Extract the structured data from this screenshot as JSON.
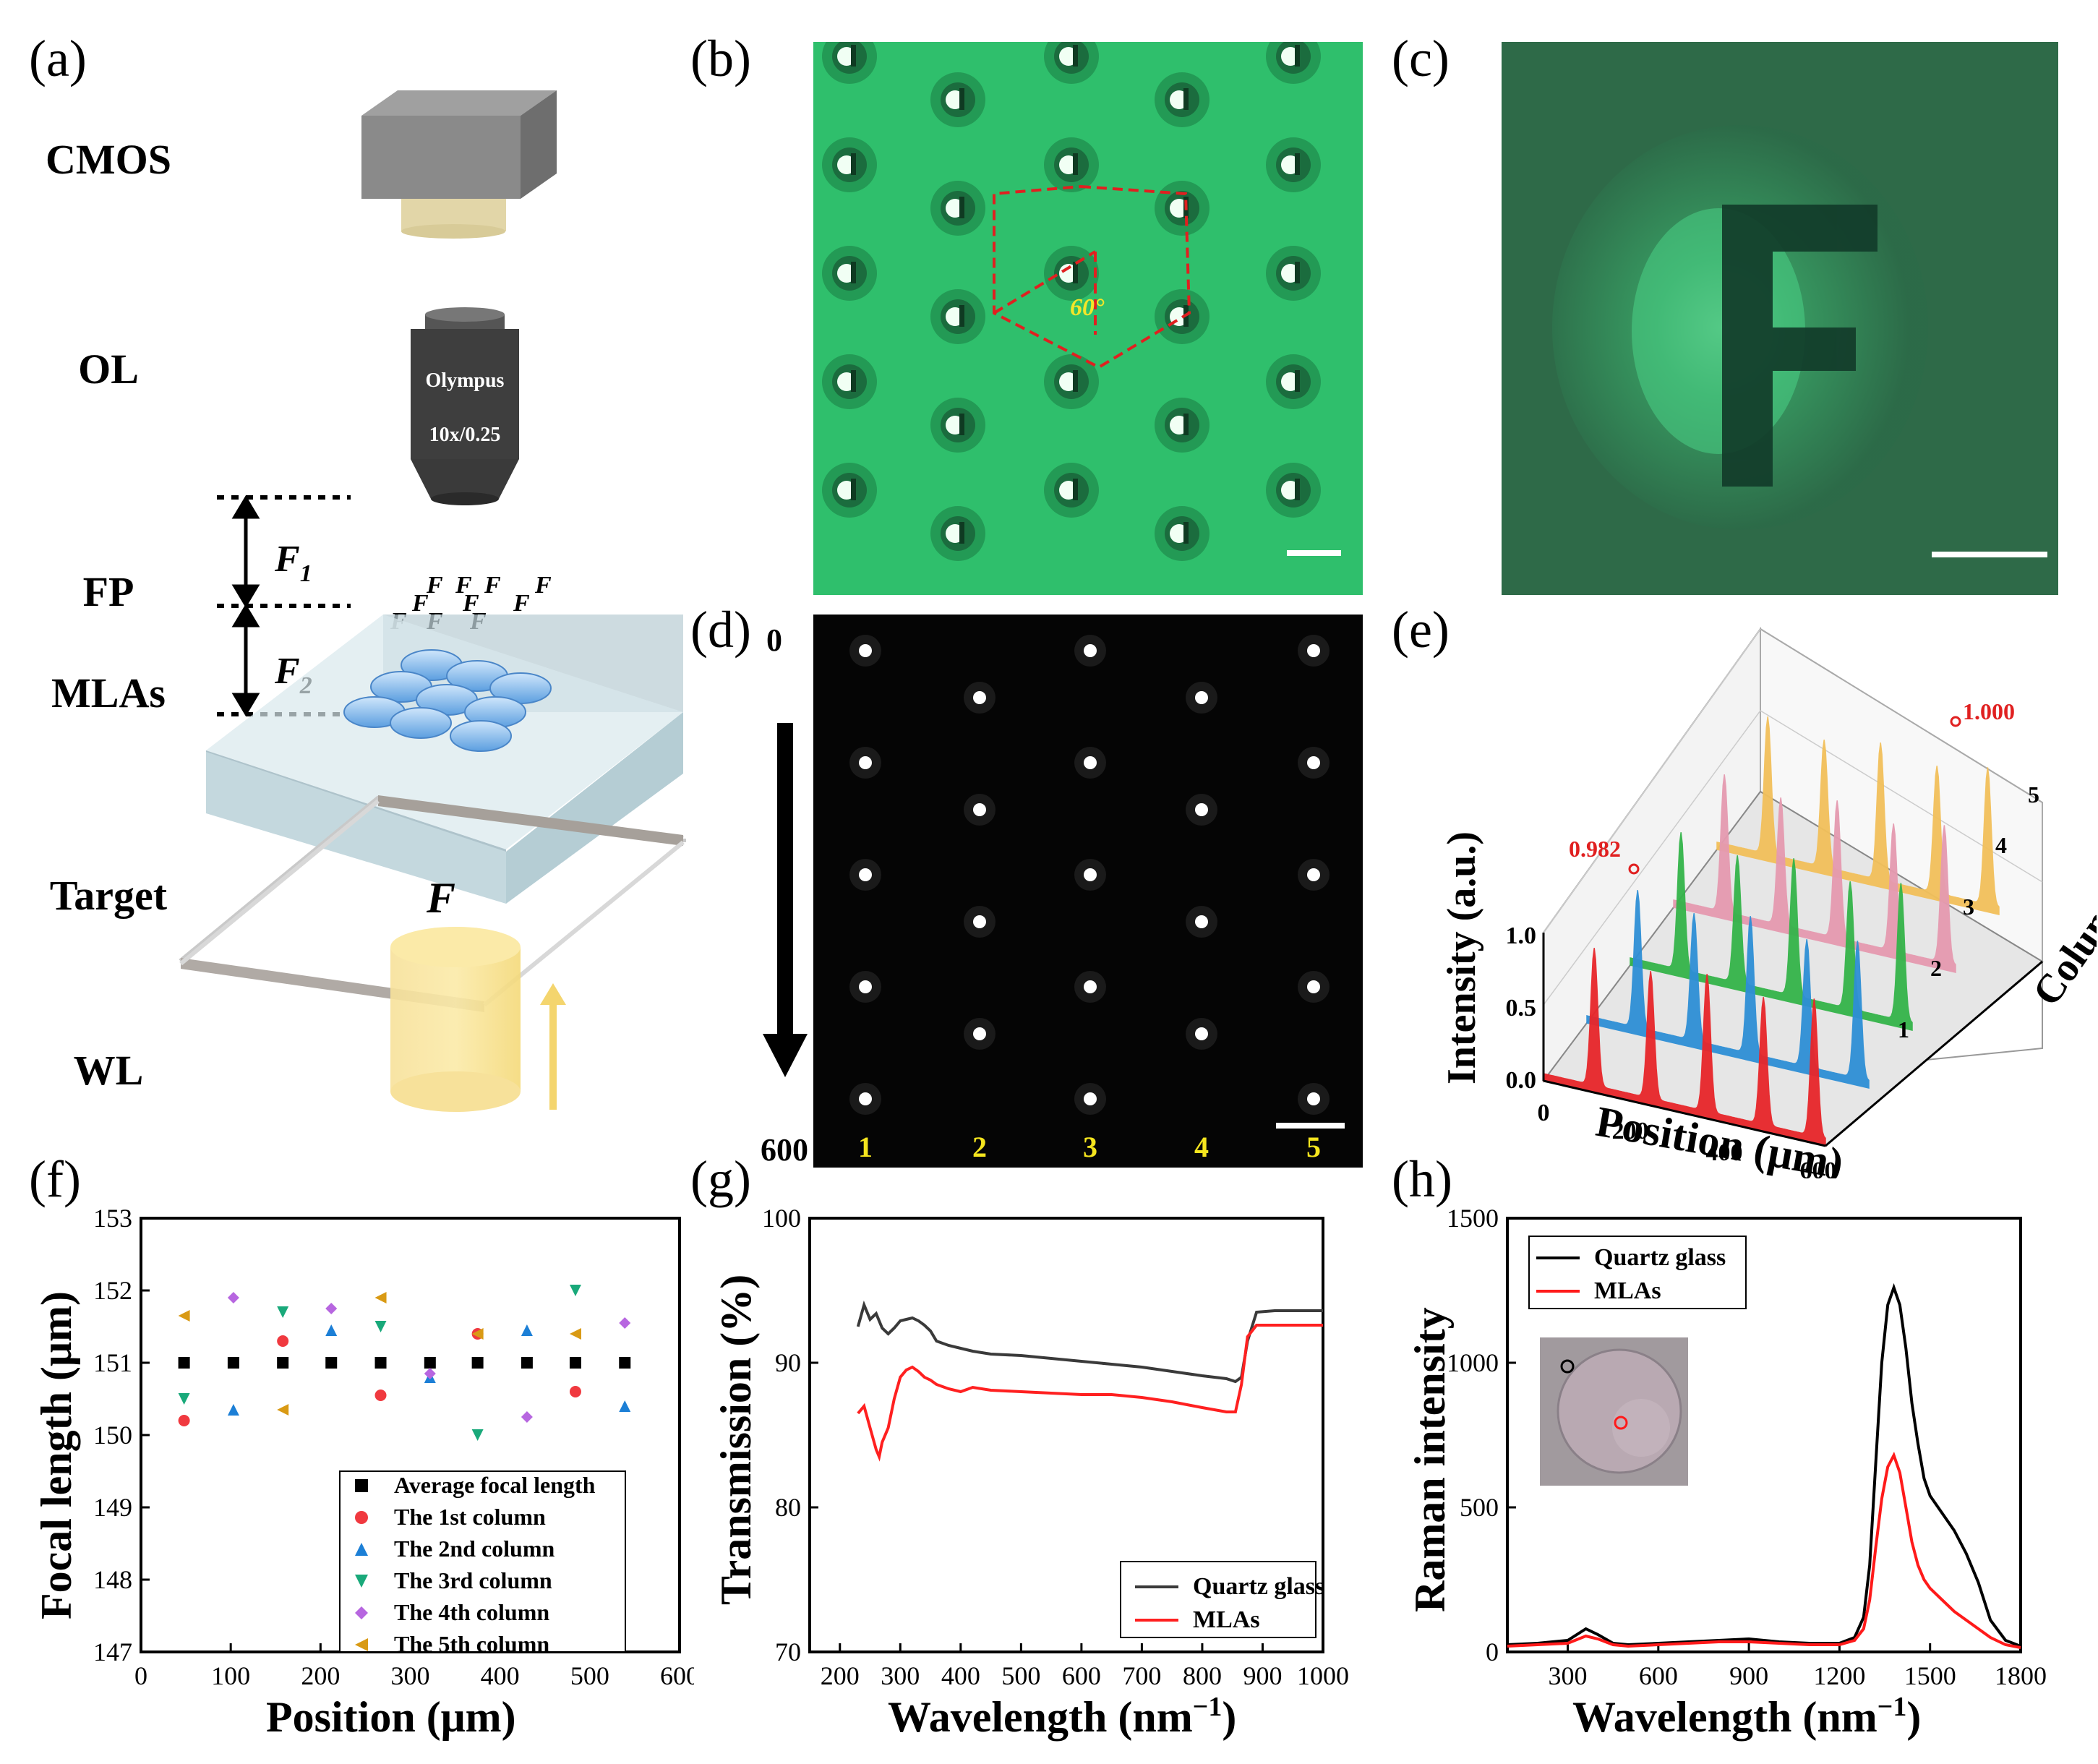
{
  "panel_labels": {
    "a": "(a)",
    "b": "(b)",
    "c": "(c)",
    "d": "(d)",
    "e": "(e)",
    "f": "(f)",
    "g": "(g)",
    "h": "(h)"
  },
  "setup": {
    "labels": [
      "CMOS",
      "OL",
      "FP",
      "MLAs",
      "Target",
      "WL"
    ],
    "objective_brand": "Olympus",
    "objective_spec": "10x/0.25",
    "f1": "F",
    "f1_sub": "1",
    "f2": "F",
    "f2_sub": "2",
    "target_glyph": "F",
    "image_glyph": "F"
  },
  "panel_b": {
    "angle_label": "60°"
  },
  "panel_d": {
    "top_label": "0",
    "bottom_label": "600",
    "columns": [
      "1",
      "2",
      "3",
      "4",
      "5"
    ]
  },
  "panel_e": {
    "ylabel": "Intensity (a.u.)",
    "xlabel": "Position (μm)",
    "zlabel": "Column",
    "y_ticks": [
      "0.0",
      "0.5",
      "1.0"
    ],
    "x_ticks": [
      "0",
      "200",
      "400",
      "600"
    ],
    "z_ticks": [
      "1",
      "2",
      "3",
      "4",
      "5"
    ],
    "annot_low": "0.982",
    "annot_high": "1.000",
    "colors": [
      "#e8262a",
      "#2e8fd6",
      "#34b44a",
      "#e59ab0",
      "#f2c05a"
    ]
  },
  "chart_data": [
    {
      "type": "scatter",
      "panel": "f",
      "xlabel": "Position  (μm)",
      "ylabel": "Focal length (μm)",
      "xlim": [
        0,
        600
      ],
      "ylim": [
        147,
        153
      ],
      "x_ticks": [
        "0",
        "100",
        "200",
        "300",
        "400",
        "500",
        "600"
      ],
      "y_ticks": [
        "147",
        "148",
        "149",
        "150",
        "151",
        "152",
        "153"
      ],
      "series": [
        {
          "name": "Average focal length",
          "color": "#000000",
          "marker": "square",
          "x": [
            48,
            103,
            158,
            212,
            267,
            322,
            375,
            430,
            484,
            539
          ],
          "y": [
            151.0,
            151.0,
            151.0,
            151.0,
            151.0,
            151.0,
            151.0,
            151.0,
            151.0,
            151.0
          ]
        },
        {
          "name": "The 1st  column",
          "color": "#f0393f",
          "marker": "circle",
          "x": [
            48,
            158,
            267,
            375,
            484
          ],
          "y": [
            150.2,
            151.3,
            150.55,
            151.4,
            150.6
          ]
        },
        {
          "name": "The 2nd column",
          "color": "#1c7fd6",
          "marker": "triangle-up",
          "x": [
            103,
            212,
            322,
            430,
            539
          ],
          "y": [
            150.35,
            151.45,
            150.8,
            151.45,
            150.4
          ]
        },
        {
          "name": "The 3rd column",
          "color": "#19a97a",
          "marker": "triangle-down",
          "x": [
            48,
            158,
            267,
            375,
            484
          ],
          "y": [
            150.5,
            151.7,
            151.5,
            150.0,
            152.0
          ]
        },
        {
          "name": "The 4th column",
          "color": "#b766e0",
          "marker": "diamond",
          "x": [
            103,
            212,
            322,
            430,
            539
          ],
          "y": [
            151.9,
            151.75,
            150.85,
            150.25,
            151.55
          ]
        },
        {
          "name": "The 5th column",
          "color": "#d99a14",
          "marker": "triangle-left",
          "x": [
            48,
            158,
            267,
            375,
            484
          ],
          "y": [
            151.65,
            150.35,
            151.9,
            151.4,
            151.4
          ]
        }
      ]
    },
    {
      "type": "line",
      "panel": "g",
      "xlabel": "Wavelength (nm",
      "xlabel_sup": "−1",
      "xlabel_end": ")",
      "ylabel": "Transmission (%)",
      "xlim": [
        150,
        1000
      ],
      "ylim": [
        70,
        100
      ],
      "x_ticks": [
        "200",
        "300",
        "400",
        "500",
        "600",
        "700",
        "800",
        "900",
        "1000"
      ],
      "y_ticks": [
        "70",
        "80",
        "90",
        "100"
      ],
      "series": [
        {
          "name": "Quartz glass",
          "color": "#3a3a3a",
          "x": [
            230,
            240,
            250,
            260,
            270,
            280,
            290,
            300,
            310,
            320,
            330,
            340,
            350,
            360,
            380,
            400,
            420,
            450,
            500,
            550,
            600,
            650,
            700,
            750,
            800,
            840,
            855,
            865,
            875,
            890,
            920,
            960,
            1000
          ],
          "y": [
            92.5,
            94.0,
            93.0,
            93.4,
            92.4,
            92.0,
            92.4,
            92.9,
            93.0,
            93.1,
            92.9,
            92.6,
            92.2,
            91.5,
            91.2,
            91.0,
            90.8,
            90.6,
            90.5,
            90.3,
            90.1,
            89.9,
            89.7,
            89.4,
            89.1,
            88.9,
            88.7,
            89.0,
            91.5,
            93.5,
            93.6,
            93.6,
            93.6
          ]
        },
        {
          "name": "MLAs",
          "color": "#ff2020",
          "x": [
            230,
            240,
            250,
            260,
            265,
            270,
            280,
            290,
            300,
            310,
            320,
            330,
            340,
            350,
            360,
            380,
            400,
            420,
            450,
            500,
            550,
            600,
            650,
            700,
            750,
            800,
            840,
            855,
            865,
            875,
            890,
            920,
            960,
            1000
          ],
          "y": [
            86.5,
            87.0,
            85.5,
            84.0,
            83.5,
            84.5,
            85.5,
            87.5,
            89.0,
            89.5,
            89.7,
            89.4,
            89.0,
            88.8,
            88.5,
            88.2,
            88.0,
            88.3,
            88.1,
            88.0,
            87.9,
            87.8,
            87.8,
            87.6,
            87.3,
            86.9,
            86.6,
            86.6,
            88.5,
            91.8,
            92.6,
            92.6,
            92.6,
            92.6
          ]
        }
      ]
    },
    {
      "type": "line",
      "panel": "h",
      "xlabel": "Wavelength (nm",
      "xlabel_sup": "−1",
      "xlabel_end": ")",
      "ylabel": "Raman intensity",
      "xlim": [
        100,
        1800
      ],
      "ylim": [
        0,
        1500
      ],
      "x_ticks": [
        "300",
        "600",
        "900",
        "1200",
        "1500",
        "1800"
      ],
      "y_ticks": [
        "0",
        "500",
        "1000",
        "1500"
      ],
      "series": [
        {
          "name": "Quartz glass",
          "color": "#000000",
          "x": [
            100,
            200,
            300,
            360,
            400,
            450,
            500,
            600,
            700,
            800,
            900,
            1000,
            1100,
            1200,
            1250,
            1280,
            1300,
            1320,
            1340,
            1360,
            1380,
            1400,
            1420,
            1440,
            1460,
            1480,
            1500,
            1540,
            1580,
            1620,
            1660,
            1700,
            1750,
            1800
          ],
          "y": [
            25,
            30,
            40,
            80,
            60,
            30,
            25,
            30,
            35,
            40,
            45,
            35,
            30,
            30,
            50,
            120,
            300,
            650,
            1000,
            1200,
            1260,
            1200,
            1050,
            860,
            720,
            600,
            540,
            480,
            420,
            340,
            240,
            110,
            40,
            20
          ]
        },
        {
          "name": "MLAs",
          "color": "#ff1a1a",
          "x": [
            100,
            200,
            300,
            360,
            400,
            450,
            500,
            600,
            700,
            800,
            900,
            1000,
            1100,
            1200,
            1250,
            1280,
            1300,
            1320,
            1340,
            1360,
            1380,
            1400,
            1420,
            1440,
            1460,
            1480,
            1500,
            1540,
            1580,
            1620,
            1660,
            1700,
            1750,
            1800
          ],
          "y": [
            20,
            25,
            30,
            55,
            45,
            25,
            20,
            25,
            30,
            35,
            35,
            30,
            25,
            25,
            40,
            80,
            180,
            360,
            530,
            640,
            680,
            620,
            500,
            380,
            300,
            250,
            220,
            180,
            140,
            110,
            80,
            50,
            25,
            15
          ]
        }
      ]
    }
  ]
}
